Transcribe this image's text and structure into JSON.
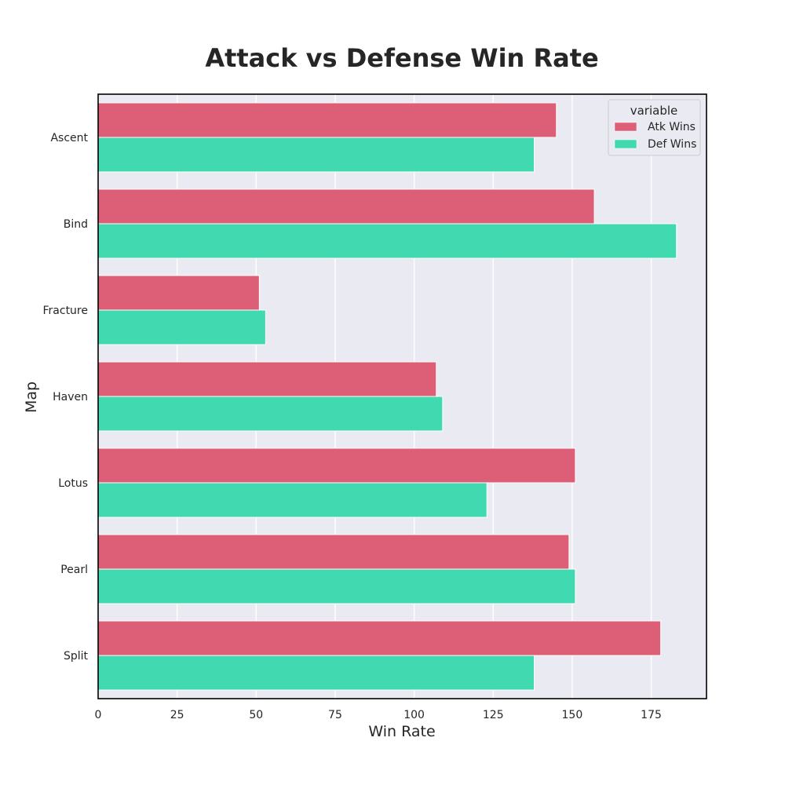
{
  "chart_data": {
    "type": "bar",
    "orientation": "horizontal",
    "title": "Attack vs Defense Win Rate",
    "xlabel": "Win Rate",
    "ylabel": "Map",
    "categories": [
      "Ascent",
      "Bind",
      "Fracture",
      "Haven",
      "Lotus",
      "Pearl",
      "Split"
    ],
    "series": [
      {
        "name": "Atk Wins",
        "color": "#dd5f77",
        "values": [
          145,
          157,
          51,
          107,
          151,
          149,
          178
        ]
      },
      {
        "name": "Def Wins",
        "color": "#40d9b0",
        "values": [
          138,
          183,
          53,
          109,
          123,
          151,
          138
        ]
      }
    ],
    "xlim": [
      0,
      192.5
    ],
    "xticks": [
      0,
      25,
      50,
      75,
      100,
      125,
      150,
      175
    ],
    "grid": true,
    "legend": {
      "title": "variable",
      "placement": "top-right"
    },
    "background_color": "#eaeaf2"
  }
}
